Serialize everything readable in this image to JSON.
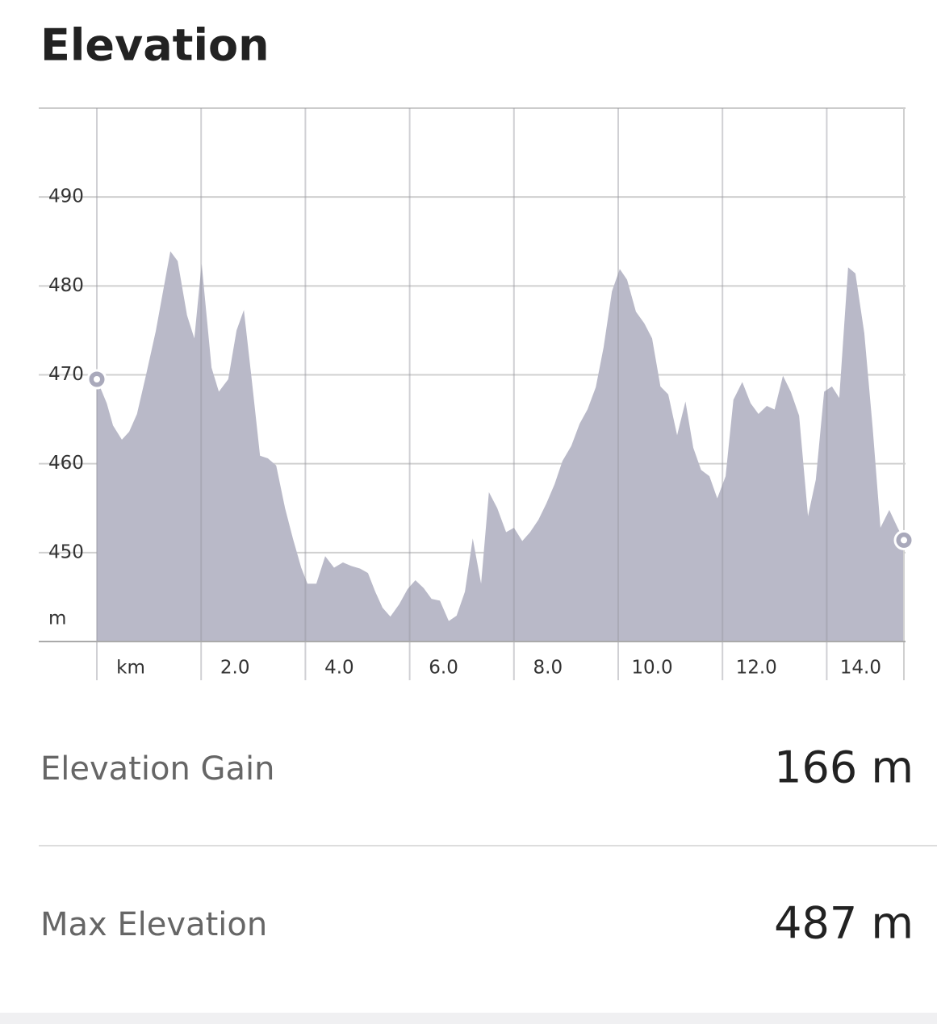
{
  "header": {
    "title": "Elevation"
  },
  "chart_data": {
    "type": "area",
    "color": "#b9b9c8",
    "x": [
      0,
      0.19,
      0.31,
      0.48,
      0.62,
      0.77,
      0.94,
      1.13,
      1.41,
      1.55,
      1.73,
      1.87,
      2.01,
      2.2,
      2.34,
      2.52,
      2.68,
      2.82,
      2.97,
      3.13,
      3.28,
      3.44,
      3.61,
      3.76,
      3.92,
      4.04,
      4.21,
      4.38,
      4.55,
      4.72,
      4.88,
      5.05,
      5.2,
      5.34,
      5.48,
      5.63,
      5.8,
      5.96,
      6.11,
      6.27,
      6.42,
      6.58,
      6.75,
      6.9,
      7.06,
      7.21,
      7.37,
      7.52,
      7.68,
      7.85,
      8,
      8.16,
      8.31,
      8.47,
      8.62,
      8.78,
      8.93,
      9.1,
      9.26,
      9.41,
      9.57,
      9.72,
      9.88,
      10.03,
      10.17,
      10.34,
      10.5,
      10.65,
      10.81,
      10.96,
      11.13,
      11.29,
      11.44,
      11.59,
      11.75,
      11.9,
      12.06,
      12.21,
      12.38,
      12.54,
      12.69,
      12.85,
      13,
      13.16,
      13.31,
      13.47,
      13.64,
      13.79,
      13.95,
      14.1,
      14.24,
      14.41,
      14.55,
      14.72,
      14.88,
      15.03,
      15.2,
      15.36,
      15.48
    ],
    "values": [
      469.5,
      466.8,
      464.3,
      462.7,
      463.6,
      465.6,
      469.9,
      474.9,
      483.9,
      482.8,
      476.7,
      474.1,
      482.5,
      470.8,
      468.1,
      469.5,
      475,
      477.3,
      469.5,
      460.9,
      460.6,
      459.8,
      455,
      451.6,
      448.3,
      446.5,
      446.5,
      449.6,
      448.3,
      448.9,
      448.5,
      448.2,
      447.7,
      445.6,
      443.8,
      442.8,
      444.2,
      445.9,
      446.9,
      446,
      444.8,
      444.6,
      442.3,
      442.9,
      445.6,
      451.6,
      446.5,
      456.8,
      455,
      452.3,
      452.8,
      451.3,
      452.3,
      453.7,
      455.5,
      457.7,
      460.3,
      462,
      464.5,
      466.1,
      468.6,
      473.1,
      479.4,
      481.9,
      480.7,
      477.1,
      475.8,
      474.1,
      468.7,
      467.8,
      463.2,
      467,
      461.8,
      459.3,
      458.6,
      456.1,
      458.6,
      467.2,
      469.2,
      466.8,
      465.6,
      466.5,
      466.1,
      469.9,
      468.1,
      465.4,
      454.1,
      458.2,
      468.1,
      468.7,
      467.4,
      482.1,
      481.4,
      474.7,
      464.1,
      452.8,
      454.8,
      452.8,
      451.4
    ],
    "xlim": [
      0,
      15.48
    ],
    "ylim": [
      440,
      500
    ],
    "xticks": [
      {
        "value": 0,
        "label": "km"
      },
      {
        "value": 2,
        "label": "2.0"
      },
      {
        "value": 4,
        "label": "4.0"
      },
      {
        "value": 6,
        "label": "6.0"
      },
      {
        "value": 8,
        "label": "8.0"
      },
      {
        "value": 10,
        "label": "10.0"
      },
      {
        "value": 12,
        "label": "12.0"
      },
      {
        "value": 14,
        "label": "14.0"
      }
    ],
    "yticks": [
      {
        "value": 440,
        "label": "m"
      },
      450,
      460,
      470,
      480,
      490
    ],
    "grid": true
  },
  "stats": [
    {
      "label": "Elevation Gain",
      "value": "166 m"
    },
    {
      "label": "Max Elevation",
      "value": "487 m"
    }
  ]
}
